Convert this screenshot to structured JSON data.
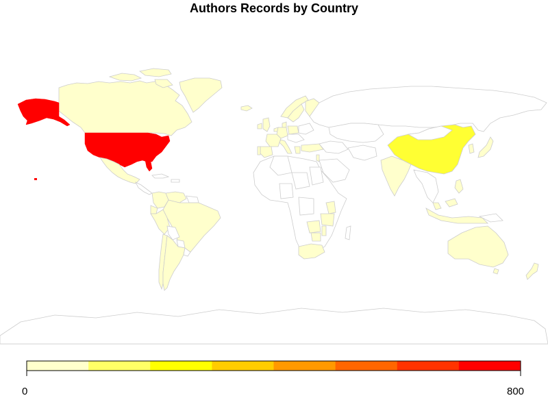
{
  "map": {
    "title": "Authors Records by Country",
    "projection": "equirectangular",
    "border_color": "#cccccc",
    "no_data_color": "#ffffff",
    "shaded_countries": [
      {
        "name": "United States",
        "bin": 8
      },
      {
        "name": "China",
        "bin": 2
      },
      {
        "name": "Canada",
        "bin": 1
      },
      {
        "name": "Mexico",
        "bin": 1
      },
      {
        "name": "Brazil",
        "bin": 1
      },
      {
        "name": "Argentina",
        "bin": 1
      },
      {
        "name": "Chile",
        "bin": 1
      },
      {
        "name": "Colombia",
        "bin": 1
      },
      {
        "name": "Venezuela",
        "bin": 1
      },
      {
        "name": "Peru",
        "bin": 1
      },
      {
        "name": "Ecuador",
        "bin": 1
      },
      {
        "name": "Greenland",
        "bin": 1
      },
      {
        "name": "Iceland",
        "bin": 1
      },
      {
        "name": "Ireland",
        "bin": 1
      },
      {
        "name": "United Kingdom",
        "bin": 1
      },
      {
        "name": "Spain",
        "bin": 1
      },
      {
        "name": "Portugal",
        "bin": 1
      },
      {
        "name": "France",
        "bin": 1
      },
      {
        "name": "Germany",
        "bin": 1
      },
      {
        "name": "Netherlands",
        "bin": 1
      },
      {
        "name": "Denmark",
        "bin": 1
      },
      {
        "name": "Norway",
        "bin": 1
      },
      {
        "name": "Sweden",
        "bin": 1
      },
      {
        "name": "Finland",
        "bin": 1
      },
      {
        "name": "Italy",
        "bin": 1
      },
      {
        "name": "Poland",
        "bin": 1
      },
      {
        "name": "Greece",
        "bin": 1
      },
      {
        "name": "Turkey",
        "bin": 1
      },
      {
        "name": "Israel",
        "bin": 1
      },
      {
        "name": "India",
        "bin": 1
      },
      {
        "name": "Japan",
        "bin": 1
      },
      {
        "name": "South Korea",
        "bin": 1
      },
      {
        "name": "Malaysia",
        "bin": 1
      },
      {
        "name": "Indonesia",
        "bin": 1
      },
      {
        "name": "Philippines",
        "bin": 1
      },
      {
        "name": "Australia",
        "bin": 1
      },
      {
        "name": "New Zealand",
        "bin": 1
      },
      {
        "name": "South Africa",
        "bin": 1
      },
      {
        "name": "Kenya",
        "bin": 1
      },
      {
        "name": "Tanzania",
        "bin": 1
      },
      {
        "name": "Zambia",
        "bin": 1
      },
      {
        "name": "Malawi",
        "bin": 1
      },
      {
        "name": "Zimbabwe",
        "bin": 1
      }
    ]
  },
  "legend": {
    "min_label": "0",
    "max_label": "800",
    "colors": [
      "#ffffcc",
      "#ffff66",
      "#ffff00",
      "#ffcc00",
      "#ff9900",
      "#ff6600",
      "#ff3300",
      "#ff0000"
    ]
  }
}
